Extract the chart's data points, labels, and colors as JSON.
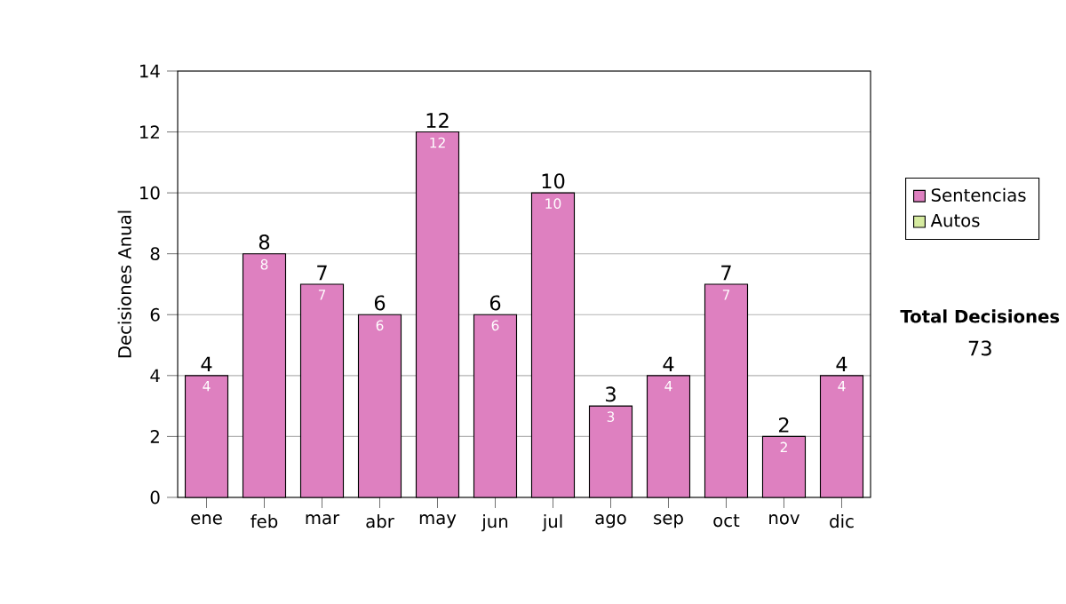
{
  "chart_data": {
    "type": "bar",
    "ylabel": "Decisiones Anual",
    "categories": [
      "ene",
      "feb",
      "mar",
      "abr",
      "may",
      "jun",
      "jul",
      "ago",
      "sep",
      "oct",
      "nov",
      "dic"
    ],
    "series": [
      {
        "name": "Sentencias",
        "color": "#de80c0",
        "values": [
          4,
          8,
          7,
          6,
          12,
          6,
          10,
          3,
          4,
          7,
          2,
          4
        ]
      },
      {
        "name": "Autos",
        "color": "#d6eba0",
        "values": [
          null,
          null,
          null,
          null,
          null,
          null,
          null,
          null,
          null,
          null,
          null,
          null
        ]
      }
    ],
    "data_labels": true,
    "totals": [
      "4",
      "8",
      "7",
      "6",
      "12",
      "6",
      "10",
      "3",
      "4",
      "7",
      "2",
      "4"
    ],
    "ylim": [
      0,
      14
    ],
    "yticks": [
      0,
      2,
      4,
      6,
      8,
      10,
      12,
      14
    ],
    "grid": "y",
    "legend": "right",
    "annotations": [
      "Total Decisiones",
      "73"
    ]
  }
}
